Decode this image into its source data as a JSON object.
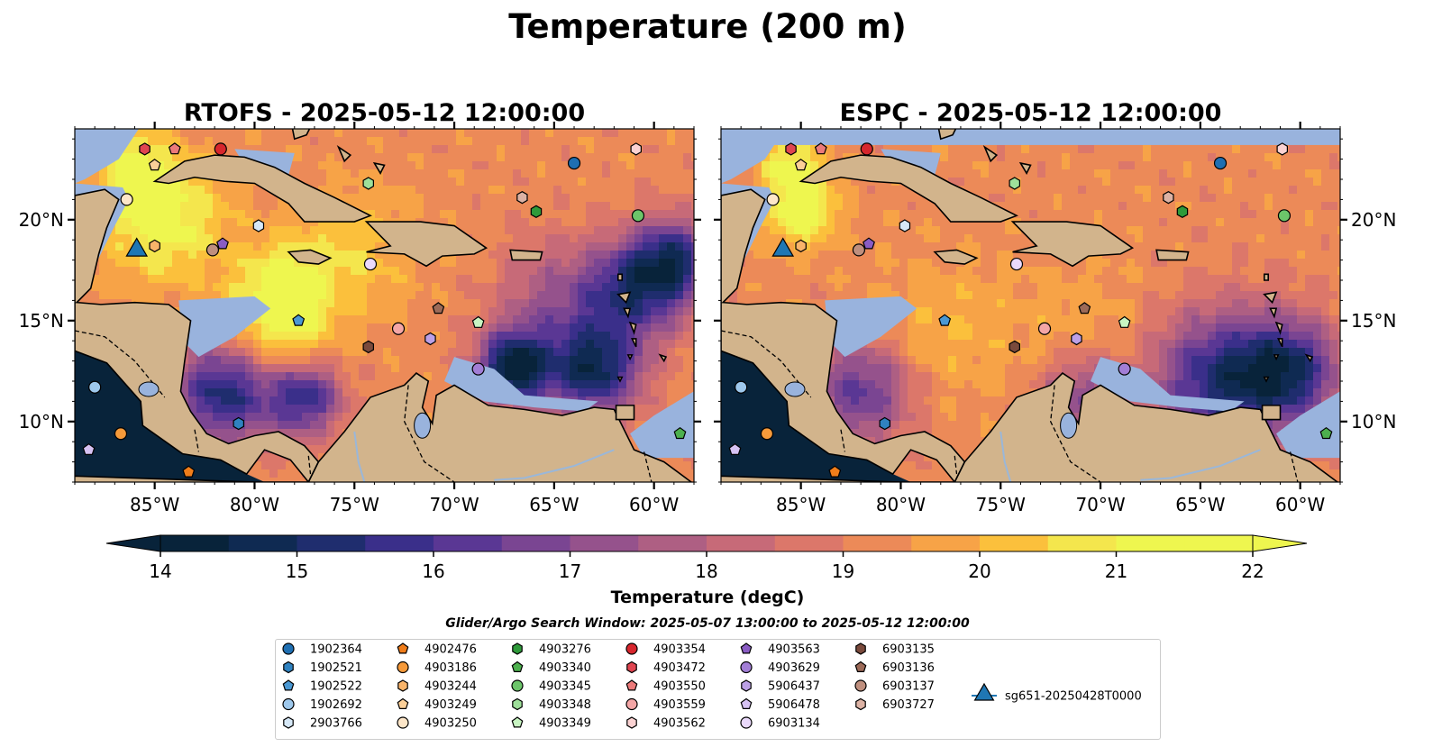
{
  "figure_title": "Temperature (200 m)",
  "colors": {
    "land": "#d2b48c",
    "shallow_water": "#99b3dd",
    "deep_pacific": "#08233a",
    "colormap": [
      "#08233a",
      "#0f2a52",
      "#1f2d6e",
      "#3a2f8a",
      "#5a3794",
      "#7a4592",
      "#95528c",
      "#ae5f83",
      "#c76a78",
      "#dc776a",
      "#ec8a58",
      "#f7a347",
      "#fbc03c",
      "#f4e64d",
      "#eef64f"
    ]
  },
  "chart_data": [
    {
      "type": "heatmap",
      "title": "RTOFS - 2025-05-12 12:00:00",
      "model": "RTOFS",
      "xlim": [
        -89,
        -58
      ],
      "ylim": [
        7,
        24.5
      ],
      "x_ticks": [
        {
          "value": -85,
          "label": "85°W"
        },
        {
          "value": -80,
          "label": "80°W"
        },
        {
          "value": -75,
          "label": "75°W"
        },
        {
          "value": -70,
          "label": "70°W"
        },
        {
          "value": -65,
          "label": "65°W"
        },
        {
          "value": -60,
          "label": "60°W"
        }
      ],
      "y_ticks": [
        {
          "value": 10,
          "label": "10°N"
        },
        {
          "value": 15,
          "label": "15°N"
        },
        {
          "value": 20,
          "label": "20°N"
        }
      ],
      "y_tick_side": "left",
      "field_features": [
        {
          "lon": -84.5,
          "lat": 20.0,
          "value": 21.8,
          "spread": 2.2
        },
        {
          "lon": -86.0,
          "lat": 22.5,
          "value": 21.5,
          "spread": 1.3
        },
        {
          "lon": -79.0,
          "lat": 14.5,
          "value": 21.7,
          "spread": 2.0
        },
        {
          "lon": -75.0,
          "lat": 18.5,
          "value": 20.8,
          "spread": 2.2
        },
        {
          "lon": -78.5,
          "lat": 17.0,
          "value": 21.0,
          "spread": 1.5
        },
        {
          "lon": -81.5,
          "lat": 11.5,
          "value": 15.2,
          "spread": 1.8
        },
        {
          "lon": -77.5,
          "lat": 11.2,
          "value": 15.6,
          "spread": 1.3
        },
        {
          "lon": -67.0,
          "lat": 12.7,
          "value": 14.3,
          "spread": 1.3
        },
        {
          "lon": -63.0,
          "lat": 12.5,
          "value": 15.0,
          "spread": 1.6
        },
        {
          "lon": -61.0,
          "lat": 16.5,
          "value": 16.0,
          "spread": 1.8
        },
        {
          "lon": -59.0,
          "lat": 18.0,
          "value": 15.8,
          "spread": 1.4
        },
        {
          "lon": -65.0,
          "lat": 16.0,
          "value": 17.8,
          "spread": 2.0
        }
      ],
      "base_value": 19.6
    },
    {
      "type": "heatmap",
      "title": "ESPC - 2025-05-12 12:00:00",
      "model": "ESPC",
      "xlim": [
        -89,
        -58
      ],
      "ylim": [
        7,
        24.5
      ],
      "x_ticks": [
        {
          "value": -85,
          "label": "85°W"
        },
        {
          "value": -80,
          "label": "80°W"
        },
        {
          "value": -75,
          "label": "75°W"
        },
        {
          "value": -70,
          "label": "70°W"
        },
        {
          "value": -65,
          "label": "65°W"
        },
        {
          "value": -60,
          "label": "60°W"
        }
      ],
      "y_ticks": [
        {
          "value": 10,
          "label": "10°N"
        },
        {
          "value": 15,
          "label": "15°N"
        },
        {
          "value": 20,
          "label": "20°N"
        }
      ],
      "y_tick_side": "right",
      "field_features": [
        {
          "lon": -85.0,
          "lat": 20.5,
          "value": 22.0,
          "spread": 1.3
        },
        {
          "lon": -85.5,
          "lat": 22.8,
          "value": 21.5,
          "spread": 1.0
        },
        {
          "lon": -78.0,
          "lat": 14.5,
          "value": 20.4,
          "spread": 2.5
        },
        {
          "lon": -71.0,
          "lat": 14.5,
          "value": 20.2,
          "spread": 2.5
        },
        {
          "lon": -82.0,
          "lat": 11.5,
          "value": 16.5,
          "spread": 1.8
        },
        {
          "lon": -64.0,
          "lat": 12.0,
          "value": 15.5,
          "spread": 2.4
        },
        {
          "lon": -60.5,
          "lat": 12.5,
          "value": 15.8,
          "spread": 1.8
        },
        {
          "lon": -71.0,
          "lat": 11.2,
          "value": 17.0,
          "spread": 1.5
        }
      ],
      "base_value": 19.6
    }
  ],
  "colorbar": {
    "min": 14,
    "max": 22,
    "step": 0.5,
    "ticks": [
      "14",
      "15",
      "16",
      "17",
      "18",
      "19",
      "20",
      "21",
      "22"
    ],
    "label": "Temperature (degC)",
    "extend": "both"
  },
  "search_window_text": "Glider/Argo Search Window: 2025-05-07 13:00:00 to 2025-05-12 12:00:00",
  "platforms": [
    {
      "id": "1902364",
      "marker": "circle",
      "color": "#1f6fb2",
      "lon": -64.0,
      "lat": 22.8
    },
    {
      "id": "1902521",
      "marker": "hexagon",
      "color": "#2f82c0",
      "lon": -80.8,
      "lat": 9.9
    },
    {
      "id": "1902522",
      "marker": "pentagon",
      "color": "#4a98d3",
      "lon": -77.8,
      "lat": 15.0
    },
    {
      "id": "1902692",
      "marker": "circle",
      "color": "#9ec8ec",
      "lon": -88.0,
      "lat": 11.7
    },
    {
      "id": "2903766",
      "marker": "hexagon",
      "color": "#d6e8f7",
      "lon": -79.8,
      "lat": 19.7
    },
    {
      "id": "4902476",
      "marker": "pentagon",
      "color": "#f07d1a",
      "lon": -83.3,
      "lat": 7.5
    },
    {
      "id": "4903186",
      "marker": "circle",
      "color": "#f69a3a",
      "lon": -86.7,
      "lat": 9.4
    },
    {
      "id": "4903244",
      "marker": "hexagon",
      "color": "#f9b46a",
      "lon": -85.0,
      "lat": 18.7
    },
    {
      "id": "4903249",
      "marker": "pentagon",
      "color": "#fbcf98",
      "lon": -85.0,
      "lat": 22.7
    },
    {
      "id": "4903250",
      "marker": "circle",
      "color": "#fde6c8",
      "lon": -86.4,
      "lat": 21.0
    },
    {
      "id": "4903276",
      "marker": "hexagon",
      "color": "#2e9a3a",
      "lon": -65.9,
      "lat": 20.4
    },
    {
      "id": "4903340",
      "marker": "pentagon",
      "color": "#4db04e",
      "lon": -58.7,
      "lat": 9.4
    },
    {
      "id": "4903345",
      "marker": "circle",
      "color": "#6cc56a",
      "lon": -60.8,
      "lat": 20.2
    },
    {
      "id": "4903348",
      "marker": "hexagon",
      "color": "#9ee09a",
      "lon": -74.3,
      "lat": 21.8
    },
    {
      "id": "4903349",
      "marker": "pentagon",
      "color": "#c8f5c2",
      "lon": -68.8,
      "lat": 14.9
    },
    {
      "id": "4903354",
      "marker": "circle",
      "color": "#d7262d",
      "lon": -81.7,
      "lat": 23.5
    },
    {
      "id": "4903472",
      "marker": "hexagon",
      "color": "#e04550",
      "lon": -85.5,
      "lat": 23.5
    },
    {
      "id": "4903550",
      "marker": "pentagon",
      "color": "#ec7a7a",
      "lon": -84.0,
      "lat": 23.5
    },
    {
      "id": "4903559",
      "marker": "circle",
      "color": "#f4a6a6",
      "lon": -72.8,
      "lat": 14.6
    },
    {
      "id": "4903562",
      "marker": "hexagon",
      "color": "#fbd2d2",
      "lon": -60.9,
      "lat": 23.5
    },
    {
      "id": "4903563",
      "marker": "pentagon",
      "color": "#8a5cc4",
      "lon": -81.6,
      "lat": 18.8
    },
    {
      "id": "4903629",
      "marker": "circle",
      "color": "#a27ed6",
      "lon": -68.8,
      "lat": 12.6
    },
    {
      "id": "5906437",
      "marker": "hexagon",
      "color": "#bca0e6",
      "lon": -71.2,
      "lat": 14.1
    },
    {
      "id": "5906478",
      "marker": "pentagon",
      "color": "#d6c2f3",
      "lon": -88.3,
      "lat": 8.6
    },
    {
      "id": "6903134",
      "marker": "circle",
      "color": "#ead9fb",
      "lon": -74.2,
      "lat": 17.8
    },
    {
      "id": "6903135",
      "marker": "hexagon",
      "color": "#7a4a3c",
      "lon": -74.3,
      "lat": 13.7
    },
    {
      "id": "6903136",
      "marker": "pentagon",
      "color": "#9c6a58",
      "lon": -70.8,
      "lat": 15.6
    },
    {
      "id": "6903137",
      "marker": "circle",
      "color": "#bf8f7e",
      "lon": -82.1,
      "lat": 18.5
    },
    {
      "id": "6903727",
      "marker": "hexagon",
      "color": "#dcb2a4",
      "lon": -66.6,
      "lat": 21.1
    },
    {
      "id": "sg651-20250428T0000",
      "marker": "triangle",
      "color": "#1f77b4",
      "lon": -85.9,
      "lat": 18.4
    }
  ]
}
